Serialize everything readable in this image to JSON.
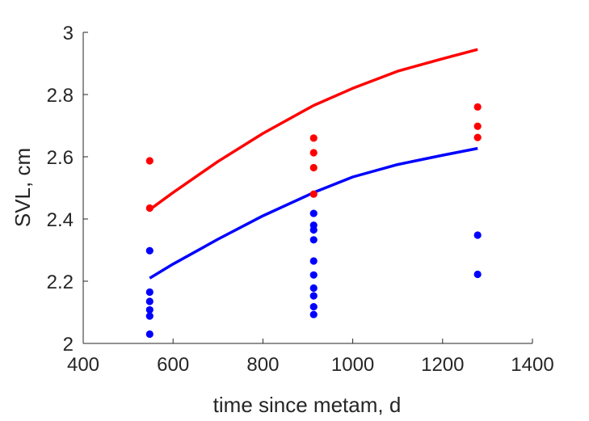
{
  "chart_data": {
    "type": "scatter",
    "title": "",
    "xlabel": "time since metam, d",
    "ylabel": "SVL, cm",
    "xlim": [
      400,
      1400
    ],
    "ylim": [
      2,
      3
    ],
    "xticks": [
      400,
      600,
      800,
      1000,
      1200,
      1400
    ],
    "yticks": [
      2,
      2.2,
      2.4,
      2.6,
      2.8,
      3
    ],
    "xtick_labels": [
      "400",
      "600",
      "800",
      "1000",
      "1200",
      "1400"
    ],
    "ytick_labels": [
      "2",
      "2.2",
      "2.4",
      "2.6",
      "2.8",
      "3"
    ],
    "grid": false,
    "legend": "none",
    "series": [
      {
        "color": "#ff0000",
        "points": [
          [
            548,
            2.587
          ],
          [
            548,
            2.435
          ],
          [
            913,
            2.66
          ],
          [
            913,
            2.613
          ],
          [
            913,
            2.565
          ],
          [
            913,
            2.48
          ],
          [
            1278,
            2.76
          ],
          [
            1278,
            2.698
          ],
          [
            1278,
            2.662
          ]
        ],
        "curve": [
          [
            548,
            2.43
          ],
          [
            600,
            2.485
          ],
          [
            700,
            2.585
          ],
          [
            800,
            2.675
          ],
          [
            913,
            2.765
          ],
          [
            1000,
            2.82
          ],
          [
            1100,
            2.875
          ],
          [
            1200,
            2.915
          ],
          [
            1278,
            2.945
          ]
        ]
      },
      {
        "color": "#0000ff",
        "points": [
          [
            548,
            2.298
          ],
          [
            548,
            2.165
          ],
          [
            548,
            2.135
          ],
          [
            548,
            2.108
          ],
          [
            548,
            2.088
          ],
          [
            548,
            2.03
          ],
          [
            913,
            2.418
          ],
          [
            913,
            2.38
          ],
          [
            913,
            2.365
          ],
          [
            913,
            2.333
          ],
          [
            913,
            2.265
          ],
          [
            913,
            2.22
          ],
          [
            913,
            2.178
          ],
          [
            913,
            2.153
          ],
          [
            913,
            2.118
          ],
          [
            913,
            2.093
          ],
          [
            1278,
            2.348
          ],
          [
            1278,
            2.222
          ]
        ],
        "curve": [
          [
            548,
            2.21
          ],
          [
            600,
            2.255
          ],
          [
            700,
            2.335
          ],
          [
            800,
            2.41
          ],
          [
            913,
            2.485
          ],
          [
            1000,
            2.535
          ],
          [
            1100,
            2.575
          ],
          [
            1200,
            2.605
          ],
          [
            1278,
            2.627
          ]
        ]
      }
    ]
  }
}
